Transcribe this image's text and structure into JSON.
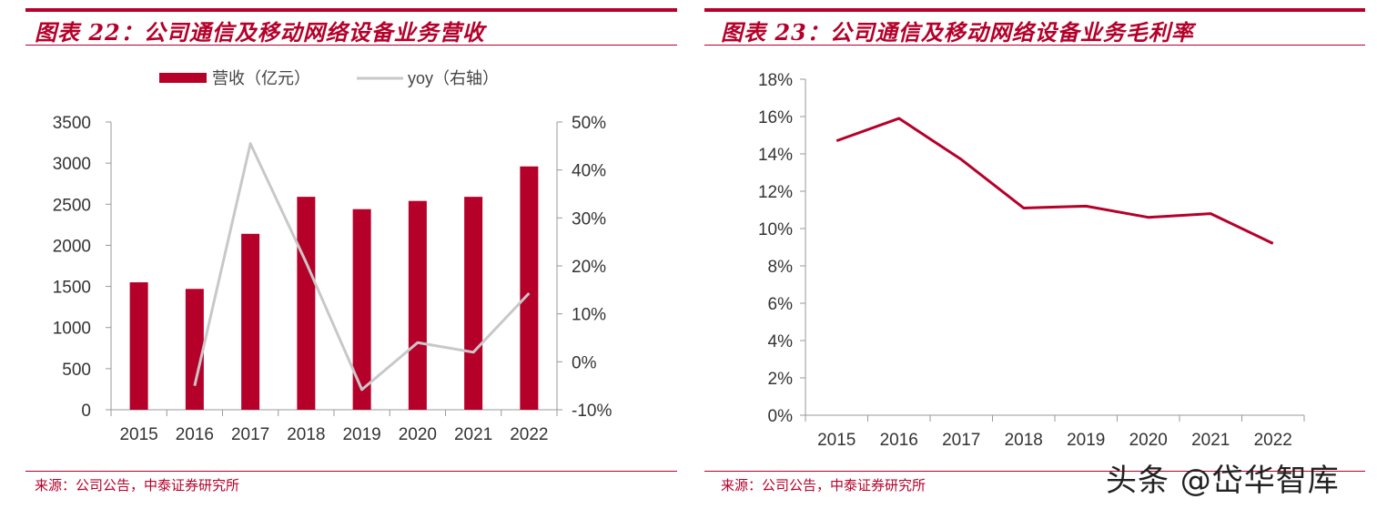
{
  "left_panel": {
    "title": "图表 22：公司通信及移动网络设备业务营收",
    "source": "来源：公司公告，中泰证券研究所"
  },
  "right_panel": {
    "title": "图表 23：公司通信及移动网络设备业务毛利率",
    "source": "来源：公司公告，中泰证券研究所"
  },
  "watermark": "头条 @岱华智库",
  "colors": {
    "accent": "#b5002a",
    "line_gray": "#c8c8c8"
  },
  "chart_data": [
    {
      "type": "bar",
      "categories": [
        "2015",
        "2016",
        "2017",
        "2018",
        "2019",
        "2020",
        "2021",
        "2022"
      ],
      "series": [
        {
          "name": "营收（亿元）",
          "type": "bar",
          "axis": "left",
          "values": [
            1550,
            1470,
            2140,
            2590,
            2440,
            2540,
            2590,
            2960
          ]
        },
        {
          "name": "yoy（右轴）",
          "type": "line",
          "axis": "right",
          "values": [
            null,
            -5,
            45.5,
            20.7,
            -5.8,
            4,
            2,
            14.3
          ]
        }
      ],
      "ylim": [
        0,
        3500
      ],
      "y_ticks": [
        "0",
        "500",
        "1000",
        "1500",
        "2000",
        "2500",
        "3000",
        "3500"
      ],
      "y2lim": [
        -10,
        50
      ],
      "y2_ticks": [
        "-10%",
        "0%",
        "10%",
        "20%",
        "30%",
        "40%",
        "50%"
      ],
      "legend": "top-center"
    },
    {
      "type": "line",
      "categories": [
        "2015",
        "2016",
        "2017",
        "2018",
        "2019",
        "2020",
        "2021",
        "2022"
      ],
      "series": [
        {
          "values": [
            14.7,
            15.9,
            13.7,
            11.1,
            11.2,
            10.6,
            10.8,
            9.2
          ]
        }
      ],
      "ylim": [
        0,
        18
      ],
      "y_ticks": [
        "0%",
        "2%",
        "4%",
        "6%",
        "8%",
        "10%",
        "12%",
        "14%",
        "16%",
        "18%"
      ]
    }
  ]
}
